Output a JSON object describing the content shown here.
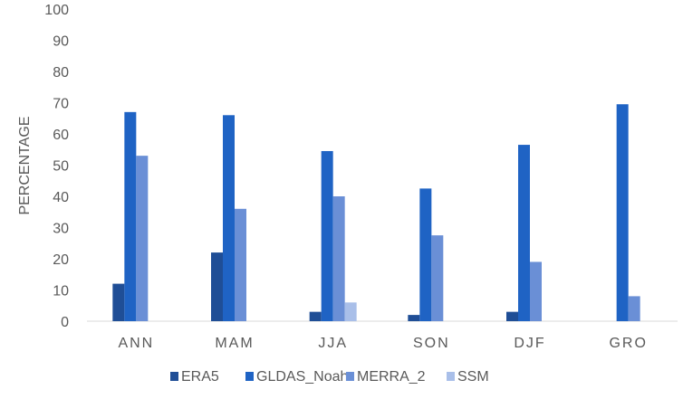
{
  "chart_data": {
    "type": "bar",
    "title": "",
    "xlabel": "",
    "ylabel": "PERCENTAGE",
    "ylim": [
      0,
      100
    ],
    "yticks": [
      "0",
      "10",
      "20",
      "30",
      "40",
      "50",
      "60",
      "70",
      "80",
      "90",
      "100"
    ],
    "categories": [
      "ANN",
      "MAM",
      "JJA",
      "SON",
      "DJF",
      "GRO"
    ],
    "series": [
      {
        "name": "ERA5",
        "color": "#1f4e96",
        "values": [
          12,
          22,
          3,
          2,
          3,
          0
        ]
      },
      {
        "name": "GLDAS_Noah",
        "color": "#1f63c4",
        "values": [
          67,
          66,
          54.5,
          42.5,
          56.5,
          69.5
        ]
      },
      {
        "name": "MERRA_2",
        "color": "#6a8fd6",
        "values": [
          53,
          36,
          40,
          27.5,
          19,
          8
        ]
      },
      {
        "name": "SSM",
        "color": "#a9bfe9",
        "values": [
          0,
          0,
          6,
          0,
          0,
          0
        ]
      }
    ],
    "grid": false,
    "legend": "bottom"
  }
}
